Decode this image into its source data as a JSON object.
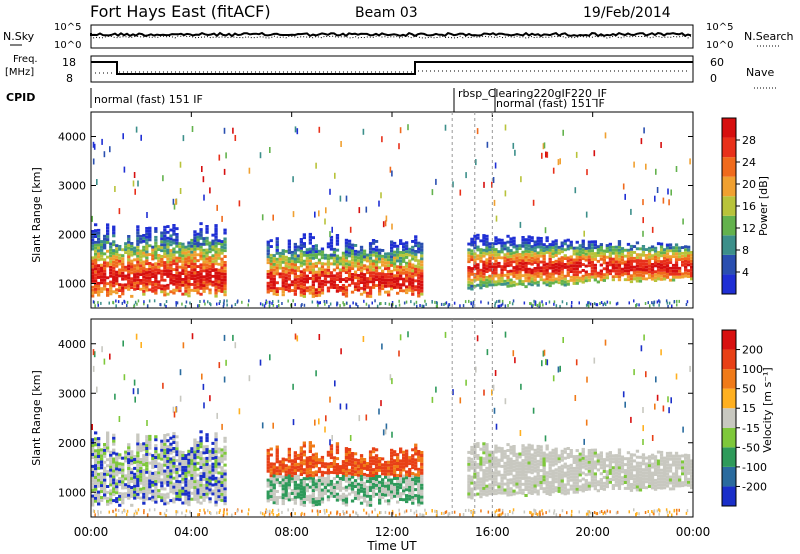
{
  "header": {
    "title": "Fort Hays East (fitACF)",
    "beam": "Beam 03",
    "date": "19/Feb/2014"
  },
  "strips": {
    "nsky_label": "N.Sky",
    "nsearch_label": "N.Search",
    "nsky_ticks": [
      "10^5",
      "10^0"
    ],
    "nsearch_ticks": [
      "10^5",
      "10^0"
    ],
    "freq_label_1": "Freq.",
    "freq_label_2": "[MHz]",
    "freq_ticks": [
      "18",
      "8"
    ],
    "nave_label": "Nave",
    "nave_ticks": [
      "60",
      "0"
    ],
    "cpid_label": "CPID",
    "cpid_segments": [
      "normal (fast) 151 IF",
      "rbsp_Clearing220gIF220_IF",
      "normal (fast) 151 IF"
    ]
  },
  "chart_data": [
    {
      "type": "heatmap",
      "name": "power",
      "ylabel": "Slant Range [km]",
      "y_ticks": [
        "1000",
        "2000",
        "3000",
        "4000"
      ],
      "ylim": [
        500,
        4500
      ],
      "colorbar_label": "Power [dB]",
      "colorbar_ticks": [
        "4",
        "8",
        "12",
        "16",
        "20",
        "24",
        "28"
      ],
      "colorbar_colors": [
        "#1f2fd4",
        "#2a4fb0",
        "#3c8f8a",
        "#63b24d",
        "#b8c33a",
        "#f0a030",
        "#f06a1c",
        "#e8301a",
        "#d60f0f"
      ]
    },
    {
      "type": "heatmap",
      "name": "velocity",
      "ylabel": "Slant Range [km]",
      "y_ticks": [
        "1000",
        "2000",
        "3000",
        "4000"
      ],
      "ylim": [
        500,
        4500
      ],
      "colorbar_label": "Velocity [m s⁻¹]",
      "colorbar_ticks": [
        "200",
        "100",
        "50",
        "15",
        "-15",
        "-50",
        "-100",
        "-200"
      ],
      "colorbar_colors": [
        "#1a2fc9",
        "#2a6b9e",
        "#2e9a5a",
        "#7ec83a",
        "#c8c8c0",
        "#ffb020",
        "#f07a18",
        "#e84016",
        "#d81010"
      ]
    }
  ],
  "x_axis": {
    "ticks": [
      "00:00",
      "04:00",
      "08:00",
      "12:00",
      "16:00",
      "20:00",
      "00:00"
    ],
    "label": "Time UT"
  }
}
